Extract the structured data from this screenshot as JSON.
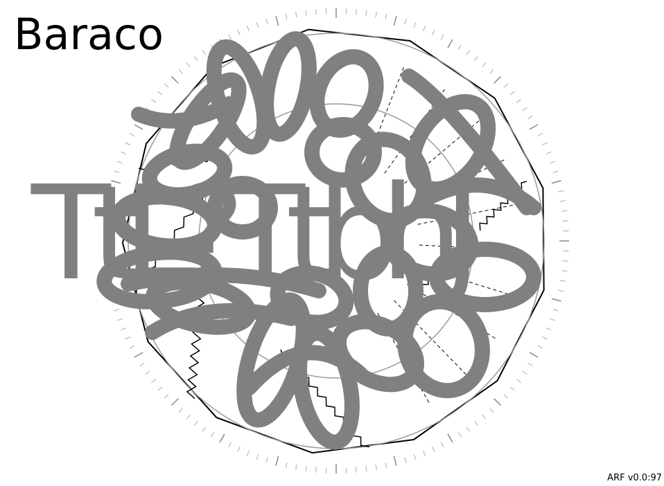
{
  "title": "Baraco",
  "footer": {
    "version": "ARF v0.0:97"
  },
  "glyphs": {
    "text": "TtL?TtbhJ"
  },
  "colors": {
    "background": "#ffffff",
    "ink": "#000000",
    "stroke": "#808080",
    "ring": "#999999"
  }
}
